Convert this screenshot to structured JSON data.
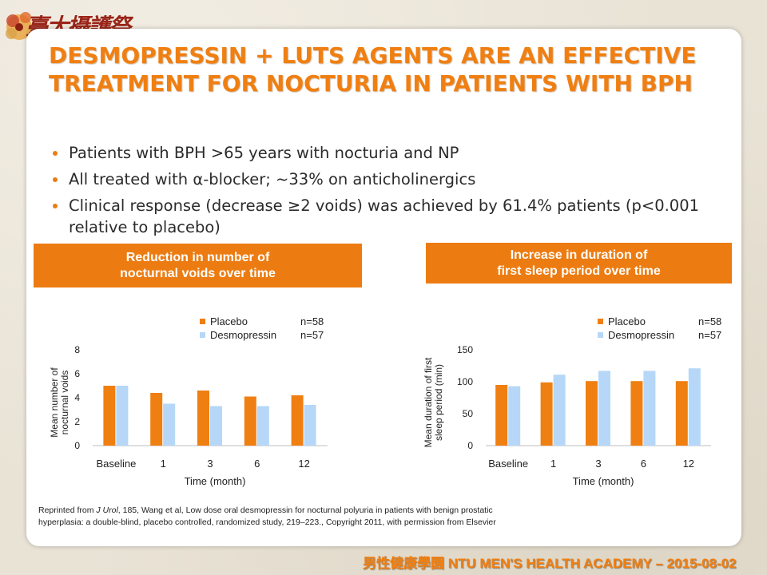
{
  "logo": {
    "text": "臺大攝護祭"
  },
  "title": "DESMOPRESSIN + LUTS AGENTS ARE AN EFFECTIVE TREATMENT FOR NOCTURIA IN PATIENTS WITH BPH",
  "bullets": [
    "Patients with BPH >65 years with nocturia and NP",
    "All treated with α-blocker; ~33% on anticholinergics",
    "Clinical response (decrease ≥2 voids) was achieved by 61.4% patients (p<0.001 relative to placebo)"
  ],
  "panels": {
    "left_header_line1": "Reduction in number of",
    "left_header_line2": "nocturnal voids over time",
    "right_header_line1": "Increase in duration of",
    "right_header_line2": "first sleep period over time"
  },
  "colors": {
    "accent": "#ec7c12",
    "placebo": "#f07f12",
    "desmopressin": "#b6d7f7"
  },
  "chart_data": [
    {
      "type": "bar",
      "categories": [
        "Baseline",
        "1",
        "3",
        "6",
        "12"
      ],
      "series": [
        {
          "name": "Placebo",
          "n": "n=58",
          "values": [
            5.0,
            4.4,
            4.6,
            4.1,
            4.2
          ]
        },
        {
          "name": "Desmopressin",
          "n": "n=57",
          "values": [
            5.0,
            3.5,
            3.3,
            3.3,
            3.4
          ]
        }
      ],
      "xlabel": "Time (month)",
      "ylabel_line1": "Mean number of",
      "ylabel_line2": "nocturnal voids",
      "ylim": [
        0,
        8
      ],
      "yticks": [
        "0",
        "2",
        "4",
        "6",
        "8"
      ],
      "legend": "top-right"
    },
    {
      "type": "bar",
      "categories": [
        "Baseline",
        "1",
        "3",
        "6",
        "12"
      ],
      "series": [
        {
          "name": "Placebo",
          "n": "n=58",
          "values": [
            95,
            99,
            101,
            101,
            101
          ]
        },
        {
          "name": "Desmopressin",
          "n": "n=57",
          "values": [
            93,
            111,
            117,
            117,
            121
          ]
        }
      ],
      "xlabel": "Time (month)",
      "ylabel_line1": "Mean duration of first",
      "ylabel_line2": "sleep period (min)",
      "ylim": [
        0,
        150
      ],
      "yticks": [
        "0",
        "50",
        "100",
        "150"
      ],
      "legend": "top-right"
    }
  ],
  "reference": {
    "prefix": "Reprinted from ",
    "journal": "J Urol",
    "rest": ", 185, Wang et al, Low dose oral desmopressin for nocturnal polyuria in patients with benign prostatic hyperplasia: a double-blind, placebo controlled, randomized study, 219–223., Copyright 2011, with permission from Elsevier"
  },
  "footer": "男性健康學園 NTU MEN'S HEALTH ACADEMY – 2015-08-02"
}
